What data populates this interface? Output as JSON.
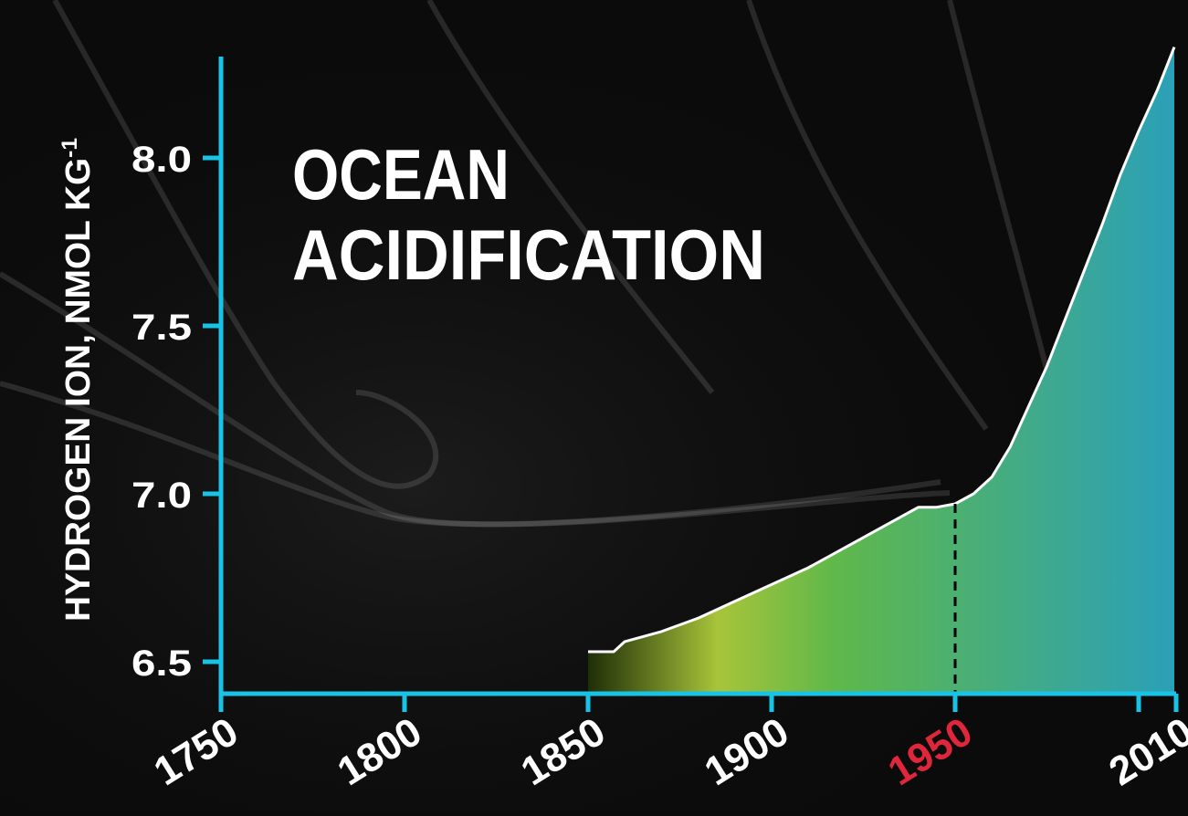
{
  "title_line1": "OCEAN",
  "title_line2": "ACIDIFICATION",
  "ylabel": "HYDROGEN ION, NMOL KG",
  "ylabel_sup": "-1",
  "colors": {
    "background": "#0b0b0b",
    "axis": "#19c3e6",
    "text": "#ffffff",
    "highlight_year": "#e0263a",
    "area_start": "#1f2e08",
    "area_mid": "#a8c43a",
    "area_green": "#5fb84a",
    "area_end": "#2aa0b8",
    "data_line": "#ffffff"
  },
  "chart_data": {
    "type": "area",
    "title": "OCEAN ACIDIFICATION",
    "xlabel": "",
    "ylabel": "HYDROGEN ION, NMOL KG-1",
    "xlim": [
      1750,
      2010
    ],
    "ylim": [
      6.4,
      8.5
    ],
    "x_ticks": [
      "1750",
      "1800",
      "1850",
      "1900",
      "1950",
      "2010"
    ],
    "x_tick_values": [
      1750,
      1800,
      1850,
      1900,
      1950,
      2010
    ],
    "highlight_tick": "1950",
    "y_ticks": [
      "6.5",
      "7.0",
      "7.5",
      "8.0"
    ],
    "y_tick_values": [
      6.5,
      7.0,
      7.5,
      8.0
    ],
    "marker_line_x": 1950,
    "series": [
      {
        "x": [
          1850,
          1857,
          1860,
          1870,
          1880,
          1890,
          1900,
          1910,
          1920,
          1930,
          1940,
          1945,
          1950,
          1955,
          1960,
          1965,
          1970,
          1975,
          1980,
          1985,
          1990,
          1995,
          2000,
          2005,
          2010
        ],
        "values": [
          6.53,
          6.53,
          6.56,
          6.59,
          6.63,
          6.68,
          6.73,
          6.78,
          6.84,
          6.9,
          6.96,
          6.96,
          6.97,
          7.0,
          7.05,
          7.14,
          7.26,
          7.38,
          7.52,
          7.66,
          7.8,
          7.95,
          8.08,
          8.2,
          8.33
        ]
      }
    ]
  }
}
